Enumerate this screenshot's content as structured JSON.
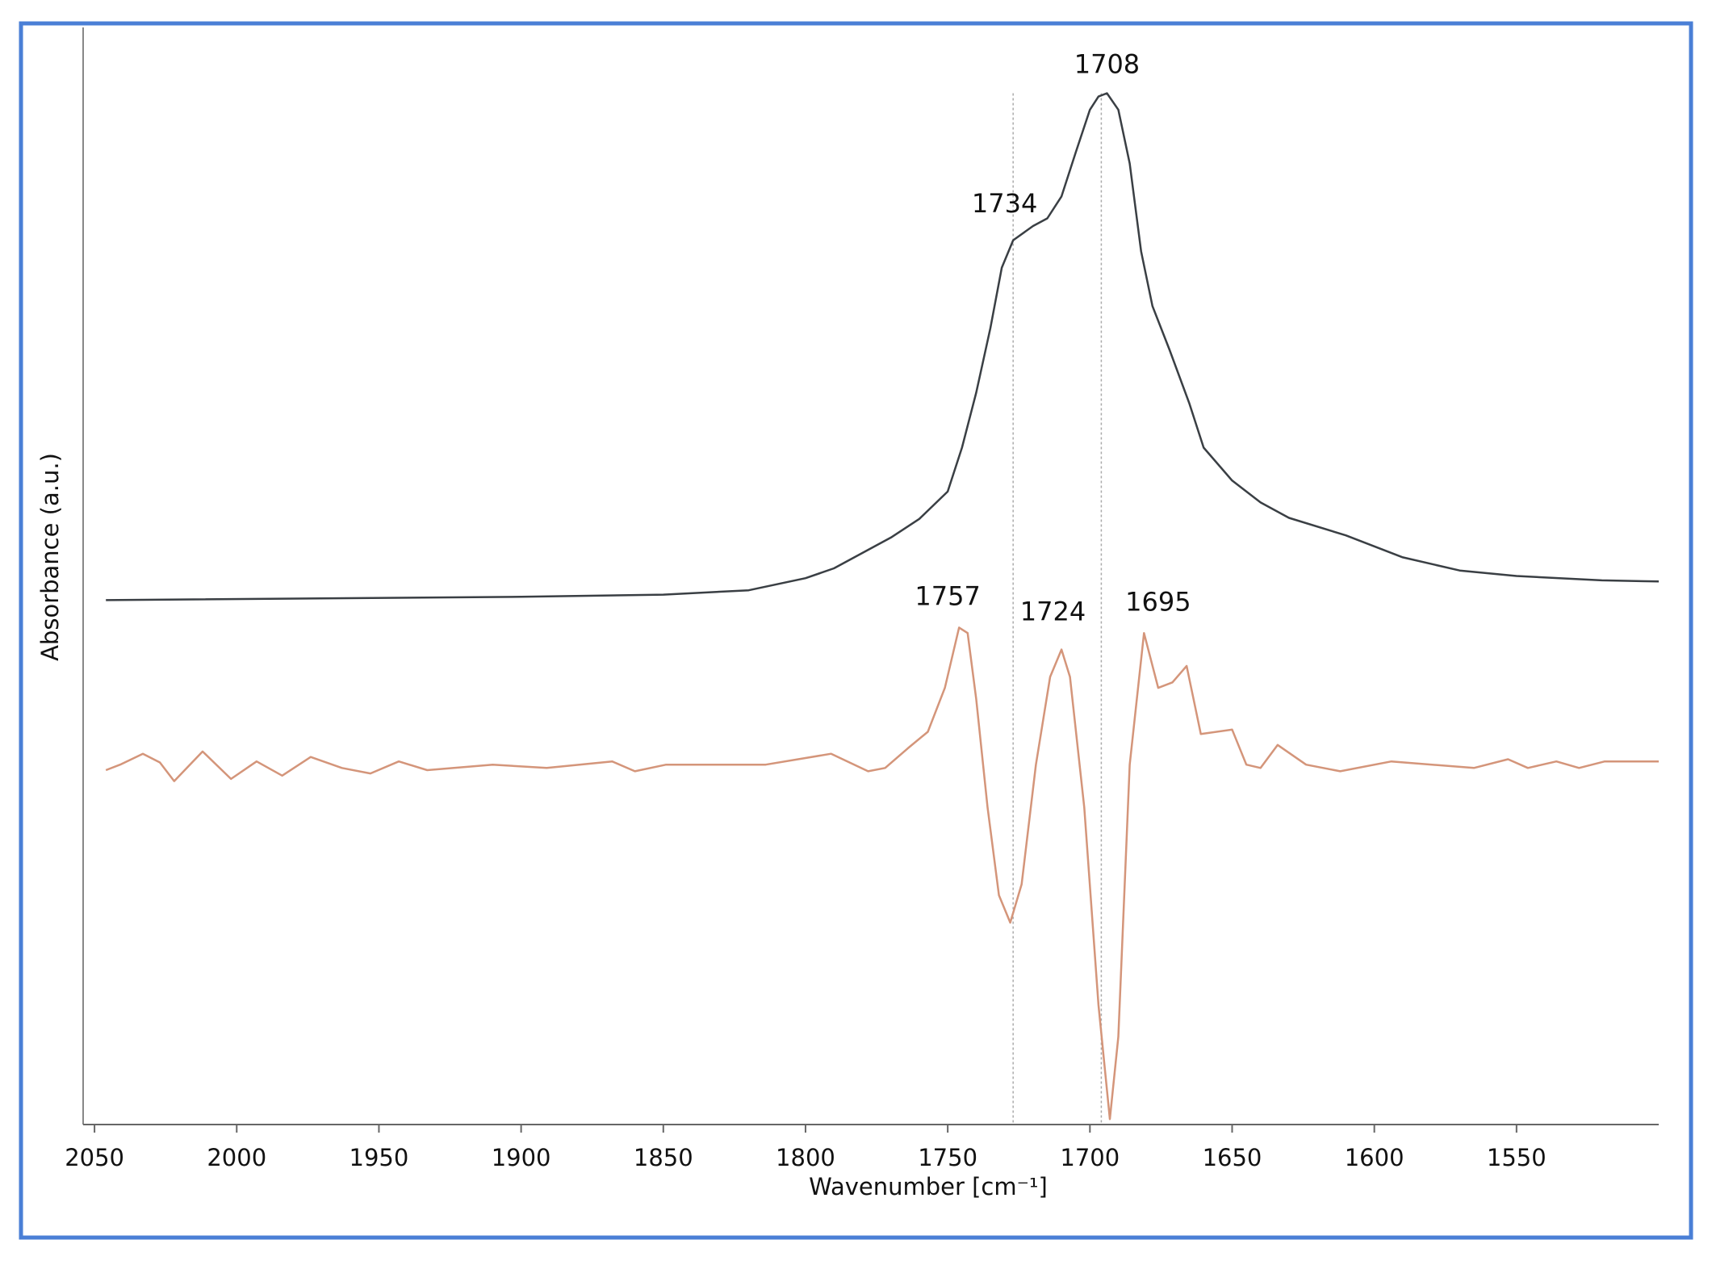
{
  "chart_data": {
    "type": "line",
    "xlabel": "Wavenumber [cm⁻¹]",
    "ylabel": "Absorbance (a.u.)",
    "xlim": [
      2054,
      1500
    ],
    "xticks": [
      2050,
      2000,
      1950,
      1900,
      1850,
      1800,
      1750,
      1700,
      1650,
      1600,
      1550
    ],
    "ylim": [
      0,
      100
    ],
    "vlines": [
      1727,
      1696
    ],
    "series": [
      {
        "color": "#3a3f44",
        "x": [
          2046,
          1900,
          1850,
          1820,
          1800,
          1790,
          1770,
          1760,
          1750,
          1745,
          1740,
          1735,
          1731,
          1727,
          1720,
          1715,
          1710,
          1705,
          1700,
          1697,
          1694,
          1690,
          1686,
          1682,
          1678,
          1672,
          1665,
          1660,
          1650,
          1640,
          1630,
          1610,
          1590,
          1570,
          1550,
          1520,
          1500
        ],
        "values": [
          47.8,
          48.1,
          48.3,
          48.7,
          49.8,
          50.7,
          53.5,
          55.2,
          57.7,
          61.7,
          66.7,
          72.6,
          78.1,
          80.6,
          81.9,
          82.6,
          84.6,
          88.6,
          92.5,
          93.7,
          94.0,
          92.5,
          87.6,
          79.6,
          74.6,
          70.6,
          65.7,
          61.7,
          58.7,
          56.7,
          55.3,
          53.7,
          51.7,
          50.5,
          50.0,
          49.6,
          49.5
        ]
      },
      {
        "color": "#d4957a",
        "x": [
          2046,
          2041,
          2033,
          2027,
          2022,
          2012,
          2002,
          1993,
          1984,
          1974,
          1963,
          1953,
          1943,
          1933,
          1910,
          1891,
          1868,
          1860,
          1849,
          1814,
          1791,
          1778,
          1772,
          1764,
          1757,
          1751,
          1746,
          1743,
          1740,
          1736,
          1732,
          1728,
          1724,
          1719,
          1714,
          1710,
          1707,
          1702,
          1697,
          1693,
          1690,
          1686,
          1681,
          1676,
          1671,
          1666,
          1661,
          1650,
          1645,
          1640,
          1634,
          1624,
          1612,
          1594,
          1565,
          1553,
          1546,
          1536,
          1528,
          1519,
          1500
        ],
        "values": [
          32.3,
          32.8,
          33.8,
          33.0,
          31.3,
          34.0,
          31.5,
          33.1,
          31.8,
          33.5,
          32.5,
          32.0,
          33.1,
          32.3,
          32.8,
          32.5,
          33.1,
          32.2,
          32.8,
          32.8,
          33.8,
          32.2,
          32.5,
          34.3,
          35.8,
          39.8,
          45.3,
          44.8,
          38.8,
          28.9,
          20.9,
          18.4,
          21.9,
          32.8,
          40.8,
          43.3,
          40.8,
          28.9,
          10.9,
          0.5,
          8.0,
          32.8,
          44.8,
          39.8,
          40.3,
          41.8,
          35.6,
          36.0,
          32.8,
          32.5,
          34.6,
          32.8,
          32.2,
          33.1,
          32.5,
          33.3,
          32.5,
          33.1,
          32.5,
          33.1,
          33.1
        ]
      }
    ],
    "annotations": [
      {
        "text": "1708",
        "x": 1694,
        "y": 96.5
      },
      {
        "text": "1734",
        "x": 1730,
        "y": 83.8
      },
      {
        "text": "1757",
        "x": 1750,
        "y": 48.0
      },
      {
        "text": "1724",
        "x": 1713,
        "y": 46.6
      },
      {
        "text": "1695",
        "x": 1676,
        "y": 47.5
      }
    ]
  }
}
